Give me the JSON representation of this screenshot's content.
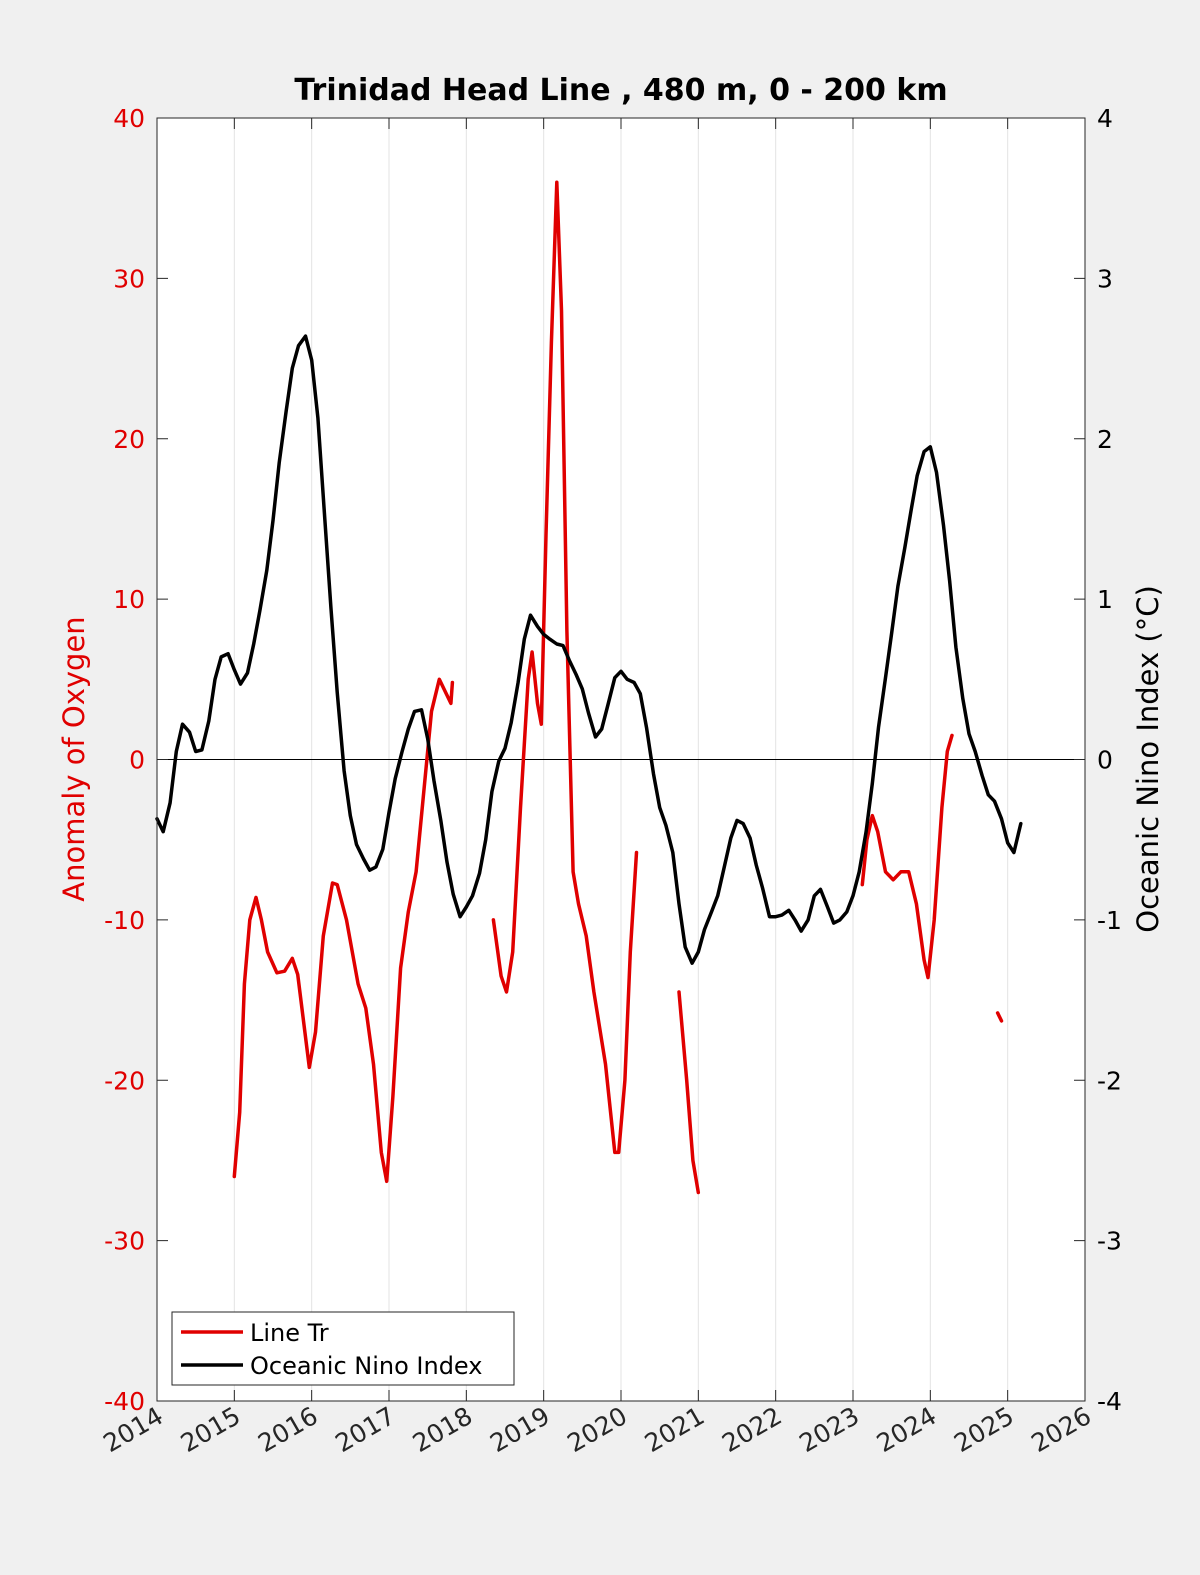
{
  "chart_data": {
    "type": "line",
    "title": "Trinidad Head Line , 480 m, 0 - 200 km",
    "xlabel": "",
    "ylabel_left": "Anomaly of Oxygen",
    "ylabel_right": "Oceanic Nino Index (°C)",
    "xlim": [
      2014,
      2026
    ],
    "ylim_left": [
      -40,
      40
    ],
    "ylim_right": [
      -4,
      4
    ],
    "x_ticks": [
      2014,
      2015,
      2016,
      2017,
      2018,
      2019,
      2020,
      2021,
      2022,
      2023,
      2024,
      2025,
      2026
    ],
    "x_tick_labels": [
      "2014",
      "2015",
      "2016",
      "2017",
      "2018",
      "2019",
      "2020",
      "2021",
      "2022",
      "2023",
      "2024",
      "2025",
      "2026"
    ],
    "y_ticks_left": [
      -40,
      -30,
      -20,
      -10,
      0,
      10,
      20,
      30,
      40
    ],
    "y_tick_labels_left": [
      "-40",
      "-30",
      "-20",
      "-10",
      "0",
      "10",
      "20",
      "30",
      "40"
    ],
    "y_ticks_right": [
      -4,
      -3,
      -2,
      -1,
      0,
      1,
      2,
      3,
      4
    ],
    "y_tick_labels_right": [
      "-4",
      "-3",
      "-2",
      "-1",
      "0",
      "1",
      "2",
      "3",
      "4"
    ],
    "grid": "vertical",
    "zero_line": true,
    "legend": {
      "placement": "bottom-left",
      "entries": [
        "Line Tr",
        "Oceanic Nino Index"
      ]
    },
    "colors": {
      "oxygen": "#e00000",
      "oni": "#000000",
      "left_axis": "#e00000",
      "right_axis": "#000000"
    },
    "series": [
      {
        "name": "Line Tr",
        "axis": "left",
        "color": "#e00000",
        "segments": [
          [
            [
              2015.0,
              -26
            ],
            [
              2015.07,
              -22
            ],
            [
              2015.13,
              -14
            ],
            [
              2015.2,
              -10
            ],
            [
              2015.28,
              -8.6
            ],
            [
              2015.35,
              -10
            ],
            [
              2015.43,
              -12
            ],
            [
              2015.55,
              -13.3
            ],
            [
              2015.65,
              -13.2
            ],
            [
              2015.75,
              -12.4
            ],
            [
              2015.82,
              -13.4
            ],
            [
              2015.9,
              -16.5
            ],
            [
              2015.97,
              -19.2
            ],
            [
              2016.05,
              -17
            ],
            [
              2016.15,
              -11
            ],
            [
              2016.27,
              -7.7
            ],
            [
              2016.33,
              -7.8
            ],
            [
              2016.45,
              -10
            ],
            [
              2016.6,
              -14
            ],
            [
              2016.7,
              -15.5
            ],
            [
              2016.8,
              -19
            ],
            [
              2016.9,
              -24.5
            ],
            [
              2016.97,
              -26.3
            ],
            [
              2017.05,
              -21
            ],
            [
              2017.15,
              -13
            ],
            [
              2017.25,
              -9.5
            ],
            [
              2017.35,
              -7
            ],
            [
              2017.45,
              -2
            ],
            [
              2017.55,
              3
            ],
            [
              2017.65,
              5
            ],
            [
              2017.75,
              4
            ],
            [
              2017.8,
              3.5
            ],
            [
              2017.82,
              4.8
            ]
          ],
          [
            [
              2018.35,
              -10
            ],
            [
              2018.45,
              -13.5
            ],
            [
              2018.52,
              -14.5
            ],
            [
              2018.6,
              -12
            ],
            [
              2018.7,
              -3
            ],
            [
              2018.8,
              5
            ],
            [
              2018.85,
              6.7
            ],
            [
              2018.92,
              3.5
            ],
            [
              2018.97,
              2.2
            ],
            [
              2019.03,
              14
            ],
            [
              2019.1,
              26
            ],
            [
              2019.17,
              36
            ],
            [
              2019.23,
              28
            ],
            [
              2019.3,
              8
            ],
            [
              2019.38,
              -7
            ],
            [
              2019.45,
              -9
            ],
            [
              2019.55,
              -11
            ],
            [
              2019.65,
              -14.5
            ],
            [
              2019.8,
              -19
            ],
            [
              2019.92,
              -24.5
            ],
            [
              2019.97,
              -24.5
            ],
            [
              2020.05,
              -20
            ],
            [
              2020.12,
              -12
            ],
            [
              2020.2,
              -5.8
            ]
          ],
          [
            [
              2020.75,
              -14.5
            ],
            [
              2020.85,
              -20
            ],
            [
              2020.93,
              -25
            ],
            [
              2021.0,
              -27
            ]
          ],
          [
            [
              2023.12,
              -7.8
            ],
            [
              2023.18,
              -5
            ],
            [
              2023.25,
              -3.5
            ],
            [
              2023.32,
              -4.5
            ],
            [
              2023.42,
              -7
            ],
            [
              2023.52,
              -7.5
            ],
            [
              2023.62,
              -7.0
            ],
            [
              2023.72,
              -7.0
            ],
            [
              2023.82,
              -9
            ],
            [
              2023.92,
              -12.5
            ],
            [
              2023.97,
              -13.6
            ],
            [
              2024.05,
              -10
            ],
            [
              2024.15,
              -3
            ],
            [
              2024.22,
              0.5
            ],
            [
              2024.28,
              1.5
            ]
          ],
          [
            [
              2024.87,
              -15.8
            ],
            [
              2024.92,
              -16.3
            ]
          ]
        ]
      },
      {
        "name": "Oceanic Nino Index",
        "axis": "right",
        "color": "#000000",
        "segments": [
          [
            [
              2014.0,
              -0.37
            ],
            [
              2014.08,
              -0.45
            ],
            [
              2014.17,
              -0.27
            ],
            [
              2014.25,
              0.05
            ],
            [
              2014.33,
              0.22
            ],
            [
              2014.42,
              0.17
            ],
            [
              2014.5,
              0.05
            ],
            [
              2014.58,
              0.06
            ],
            [
              2014.67,
              0.24
            ],
            [
              2014.75,
              0.5
            ],
            [
              2014.83,
              0.64
            ],
            [
              2014.92,
              0.66
            ],
            [
              2015.0,
              0.56
            ],
            [
              2015.08,
              0.47
            ],
            [
              2015.17,
              0.54
            ],
            [
              2015.25,
              0.72
            ],
            [
              2015.33,
              0.93
            ],
            [
              2015.42,
              1.18
            ],
            [
              2015.5,
              1.49
            ],
            [
              2015.58,
              1.85
            ],
            [
              2015.67,
              2.17
            ],
            [
              2015.75,
              2.44
            ],
            [
              2015.83,
              2.58
            ],
            [
              2015.92,
              2.64
            ],
            [
              2016.0,
              2.49
            ],
            [
              2016.08,
              2.13
            ],
            [
              2016.17,
              1.5
            ],
            [
              2016.25,
              0.94
            ],
            [
              2016.33,
              0.42
            ],
            [
              2016.42,
              -0.07
            ],
            [
              2016.5,
              -0.35
            ],
            [
              2016.58,
              -0.53
            ],
            [
              2016.67,
              -0.62
            ],
            [
              2016.75,
              -0.69
            ],
            [
              2016.83,
              -0.67
            ],
            [
              2016.92,
              -0.56
            ],
            [
              2017.0,
              -0.33
            ],
            [
              2017.08,
              -0.12
            ],
            [
              2017.17,
              0.05
            ],
            [
              2017.25,
              0.19
            ],
            [
              2017.33,
              0.3
            ],
            [
              2017.42,
              0.31
            ],
            [
              2017.5,
              0.13
            ],
            [
              2017.58,
              -0.13
            ],
            [
              2017.67,
              -0.38
            ],
            [
              2017.75,
              -0.64
            ],
            [
              2017.83,
              -0.84
            ],
            [
              2017.92,
              -0.98
            ],
            [
              2018.0,
              -0.92
            ],
            [
              2018.08,
              -0.85
            ],
            [
              2018.17,
              -0.71
            ],
            [
              2018.25,
              -0.5
            ],
            [
              2018.33,
              -0.2
            ],
            [
              2018.42,
              -0.01
            ],
            [
              2018.5,
              0.07
            ],
            [
              2018.58,
              0.23
            ],
            [
              2018.67,
              0.48
            ],
            [
              2018.75,
              0.75
            ],
            [
              2018.83,
              0.9
            ],
            [
              2018.92,
              0.83
            ],
            [
              2019.0,
              0.78
            ],
            [
              2019.08,
              0.75
            ],
            [
              2019.17,
              0.72
            ],
            [
              2019.25,
              0.71
            ],
            [
              2019.33,
              0.62
            ],
            [
              2019.42,
              0.53
            ],
            [
              2019.5,
              0.44
            ],
            [
              2019.58,
              0.29
            ],
            [
              2019.67,
              0.14
            ],
            [
              2019.75,
              0.19
            ],
            [
              2019.83,
              0.34
            ],
            [
              2019.92,
              0.51
            ],
            [
              2020.0,
              0.55
            ],
            [
              2020.08,
              0.5
            ],
            [
              2020.17,
              0.48
            ],
            [
              2020.25,
              0.41
            ],
            [
              2020.33,
              0.2
            ],
            [
              2020.42,
              -0.09
            ],
            [
              2020.5,
              -0.3
            ],
            [
              2020.58,
              -0.41
            ],
            [
              2020.67,
              -0.58
            ],
            [
              2020.75,
              -0.9
            ],
            [
              2020.83,
              -1.17
            ],
            [
              2020.92,
              -1.27
            ],
            [
              2021.0,
              -1.2
            ],
            [
              2021.08,
              -1.06
            ],
            [
              2021.17,
              -0.95
            ],
            [
              2021.25,
              -0.85
            ],
            [
              2021.33,
              -0.68
            ],
            [
              2021.42,
              -0.49
            ],
            [
              2021.5,
              -0.38
            ],
            [
              2021.58,
              -0.4
            ],
            [
              2021.67,
              -0.49
            ],
            [
              2021.75,
              -0.66
            ],
            [
              2021.83,
              -0.8
            ],
            [
              2021.92,
              -0.98
            ],
            [
              2022.0,
              -0.98
            ],
            [
              2022.08,
              -0.97
            ],
            [
              2022.17,
              -0.94
            ],
            [
              2022.25,
              -1.0
            ],
            [
              2022.33,
              -1.07
            ],
            [
              2022.42,
              -1.0
            ],
            [
              2022.5,
              -0.85
            ],
            [
              2022.58,
              -0.81
            ],
            [
              2022.67,
              -0.92
            ],
            [
              2022.75,
              -1.02
            ],
            [
              2022.83,
              -1.0
            ],
            [
              2022.92,
              -0.95
            ],
            [
              2023.0,
              -0.85
            ],
            [
              2023.08,
              -0.7
            ],
            [
              2023.17,
              -0.45
            ],
            [
              2023.25,
              -0.15
            ],
            [
              2023.33,
              0.2
            ],
            [
              2023.42,
              0.51
            ],
            [
              2023.5,
              0.79
            ],
            [
              2023.58,
              1.08
            ],
            [
              2023.67,
              1.32
            ],
            [
              2023.75,
              1.55
            ],
            [
              2023.83,
              1.77
            ],
            [
              2023.92,
              1.92
            ],
            [
              2024.0,
              1.95
            ],
            [
              2024.08,
              1.79
            ],
            [
              2024.17,
              1.46
            ],
            [
              2024.25,
              1.11
            ],
            [
              2024.33,
              0.7
            ],
            [
              2024.42,
              0.38
            ],
            [
              2024.5,
              0.16
            ],
            [
              2024.58,
              0.05
            ],
            [
              2024.67,
              -0.1
            ],
            [
              2024.75,
              -0.22
            ],
            [
              2024.83,
              -0.26
            ],
            [
              2024.92,
              -0.37
            ],
            [
              2025.0,
              -0.52
            ],
            [
              2025.08,
              -0.58
            ],
            [
              2025.17,
              -0.4
            ]
          ]
        ]
      }
    ]
  }
}
